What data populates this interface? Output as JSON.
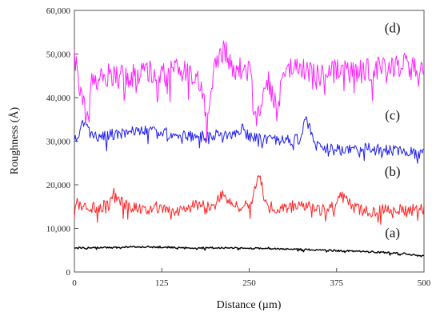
{
  "chart_data": {
    "type": "line",
    "title": "",
    "xlabel": "Distance (µm)",
    "ylabel": "Roughness (Å)",
    "xlim": [
      0,
      500
    ],
    "ylim": [
      0,
      60000
    ],
    "xticks": [
      0,
      125,
      250,
      375,
      500
    ],
    "xtick_labels": [
      "0",
      "125",
      "250",
      "375",
      "500"
    ],
    "yticks": [
      0,
      10000,
      20000,
      30000,
      40000,
      50000,
      60000
    ],
    "ytick_labels": [
      "0",
      "10,000",
      "20,000",
      "30,000",
      "40,000",
      "50,000",
      "60,000"
    ],
    "grid": false,
    "legend": "none",
    "series": [
      {
        "label": "(a)",
        "color": "#000000",
        "x": [
          0,
          25,
          50,
          75,
          100,
          125,
          150,
          175,
          200,
          225,
          250,
          275,
          300,
          325,
          350,
          375,
          400,
          425,
          450,
          475,
          500
        ],
        "y": [
          5500,
          5600,
          5600,
          5700,
          5800,
          5700,
          5600,
          5500,
          5600,
          5500,
          5400,
          5500,
          5300,
          5200,
          5000,
          4900,
          4800,
          4600,
          4400,
          4200,
          3600
        ],
        "noise": 200
      },
      {
        "label": "(b)",
        "color": "#ff2222",
        "x": [
          0,
          2,
          10,
          25,
          50,
          55,
          75,
          100,
          125,
          150,
          175,
          200,
          210,
          225,
          250,
          265,
          275,
          300,
          325,
          350,
          375,
          380,
          400,
          425,
          450,
          475,
          500
        ],
        "y": [
          12500,
          16000,
          15500,
          14500,
          15500,
          18500,
          15000,
          14500,
          15000,
          14000,
          15500,
          15000,
          18000,
          15000,
          15000,
          22000,
          15000,
          14500,
          15500,
          14000,
          15000,
          18000,
          14500,
          14000,
          14500,
          14000,
          14500
        ],
        "noise": 1400
      },
      {
        "label": "(c)",
        "color": "#2222ee",
        "x": [
          0,
          15,
          25,
          50,
          75,
          100,
          125,
          150,
          175,
          200,
          225,
          240,
          250,
          275,
          300,
          325,
          330,
          350,
          375,
          400,
          425,
          450,
          475,
          500
        ],
        "y": [
          30000,
          35000,
          31000,
          31500,
          32000,
          32500,
          32000,
          31500,
          31000,
          31500,
          31000,
          33000,
          31000,
          30500,
          30000,
          30500,
          35000,
          28500,
          28000,
          28000,
          28500,
          28000,
          27500,
          27000
        ],
        "noise": 1300
      },
      {
        "label": "(d)",
        "color": "#ff22ff",
        "x": [
          0,
          8,
          20,
          25,
          50,
          75,
          100,
          125,
          150,
          175,
          190,
          200,
          215,
          225,
          250,
          260,
          275,
          290,
          300,
          325,
          350,
          375,
          400,
          425,
          450,
          475,
          500
        ],
        "y": [
          50000,
          42000,
          34000,
          44000,
          45000,
          44500,
          46000,
          45000,
          46500,
          44000,
          37000,
          47000,
          51000,
          47000,
          46000,
          35000,
          45000,
          37000,
          46000,
          46500,
          45000,
          46000,
          45500,
          46500,
          47000,
          47500,
          45500
        ],
        "noise": 2800
      }
    ]
  }
}
